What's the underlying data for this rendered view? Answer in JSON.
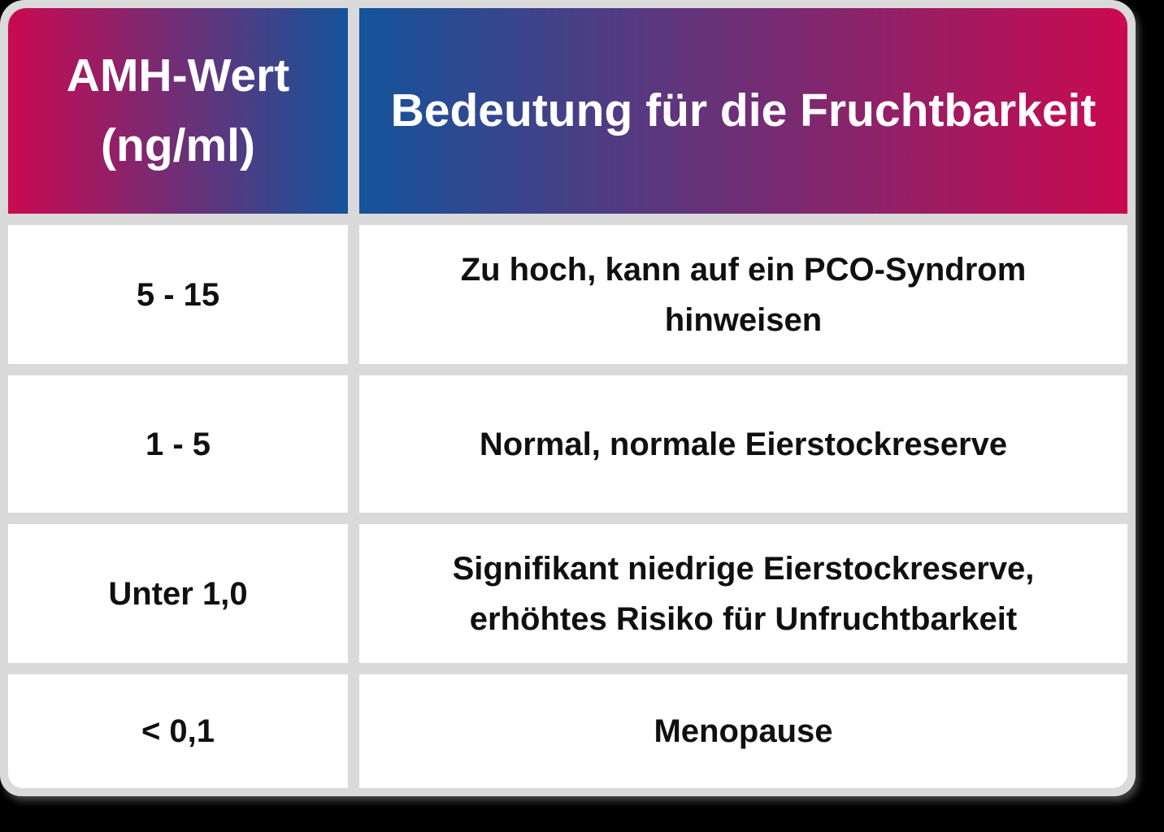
{
  "style": {
    "background": "#000000",
    "frame_gray": "#DADADA",
    "cell_white": "#FFFFFF",
    "crimson": "#CB0950",
    "blue": "#14549B",
    "header_text": "#FFFFFF",
    "body_text": "#101010"
  },
  "chart_data": {
    "type": "table",
    "title": "",
    "columns": [
      "AMH-Wert (ng/ml)",
      "Bedeutung für die Fruchtbarkeit"
    ],
    "rows": [
      [
        "5 - 15",
        "Zu hoch, kann auf ein PCO-Syndrom hinweisen"
      ],
      [
        "1 - 5",
        "Normal, normale Eierstockreserve"
      ],
      [
        "Unter 1,0",
        "Signifikant niedrige Eierstockreserve, erhöhtes Risiko für Unfruchtbarkeit"
      ],
      [
        "< 0,1",
        "Menopause"
      ]
    ],
    "layout": {
      "header_gradients": [
        "crimson-to-blue",
        "blue-to-crimson"
      ],
      "grid": "light-gray frame and gutters, white cells, rounded outer corners"
    }
  }
}
